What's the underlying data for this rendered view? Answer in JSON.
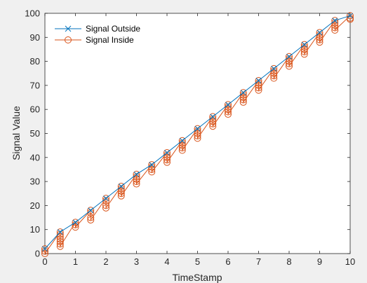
{
  "chart_data": {
    "type": "line",
    "title": "",
    "xlabel": "TimeStamp",
    "ylabel": "Signal Value",
    "xlim": [
      0,
      10
    ],
    "ylim": [
      0,
      100
    ],
    "xticks": [
      0,
      1,
      2,
      3,
      4,
      5,
      6,
      7,
      8,
      9,
      10
    ],
    "yticks": [
      0,
      10,
      20,
      30,
      40,
      50,
      60,
      70,
      80,
      90,
      100
    ],
    "grid": false,
    "legend_position": "top-left",
    "series": [
      {
        "name": "Signal Outside",
        "color": "#0072BD",
        "marker": "x",
        "x": [
          0,
          0.5,
          1,
          1.5,
          2,
          2.5,
          3,
          3.5,
          4,
          4.5,
          5,
          5.5,
          6,
          6.5,
          7,
          7.5,
          8,
          8.5,
          9,
          9.5,
          10
        ],
        "y": [
          2,
          9,
          13,
          18,
          23,
          28,
          33,
          37,
          42,
          47,
          52,
          57,
          62,
          67,
          72,
          77,
          82,
          87,
          92,
          97,
          99
        ]
      },
      {
        "name": "Signal Inside",
        "color": "#D95319",
        "marker": "o",
        "x": [
          0,
          0,
          0,
          0.5,
          0.5,
          0.5,
          0.5,
          0.5,
          0.5,
          0.5,
          1,
          1,
          1,
          1.5,
          1.5,
          1.5,
          1.5,
          2,
          2,
          2,
          2,
          2.5,
          2.5,
          2.5,
          2.5,
          2.5,
          3,
          3,
          3,
          3,
          3,
          3.5,
          3.5,
          3.5,
          3.5,
          4,
          4,
          4,
          4,
          4,
          4.5,
          4.5,
          4.5,
          4.5,
          4.5,
          5,
          5,
          5,
          5,
          5,
          5.5,
          5.5,
          5.5,
          5.5,
          5.5,
          6,
          6,
          6,
          6,
          6,
          6.5,
          6.5,
          6.5,
          6.5,
          6.5,
          7,
          7,
          7,
          7,
          7,
          7.5,
          7.5,
          7.5,
          7.5,
          7.5,
          8,
          8,
          8,
          8,
          8,
          8.5,
          8.5,
          8.5,
          8.5,
          8.5,
          9,
          9,
          9,
          9,
          9,
          9.5,
          9.5,
          9.5,
          9.5,
          9.5,
          10,
          10,
          10
        ],
        "y": [
          2,
          1,
          0,
          9,
          8,
          7,
          6,
          5,
          4,
          3,
          13,
          12,
          11,
          18,
          17,
          15,
          14,
          23,
          22,
          20,
          19,
          28,
          27,
          26,
          25,
          24,
          33,
          32,
          31,
          30,
          29,
          37,
          36,
          35,
          34,
          42,
          41,
          40,
          39,
          38,
          47,
          46,
          45,
          44,
          43,
          52,
          51,
          50,
          49,
          48,
          57,
          56,
          55,
          54,
          53,
          62,
          61,
          60,
          59,
          58,
          67,
          66,
          65,
          64,
          63,
          72,
          71,
          70,
          69,
          68,
          77,
          76,
          75,
          74,
          73,
          82,
          81,
          80,
          79,
          78,
          87,
          86,
          85,
          84,
          83,
          92,
          91,
          90,
          89,
          88,
          97,
          96,
          95,
          94,
          93,
          99,
          98,
          97.5
        ]
      }
    ]
  }
}
